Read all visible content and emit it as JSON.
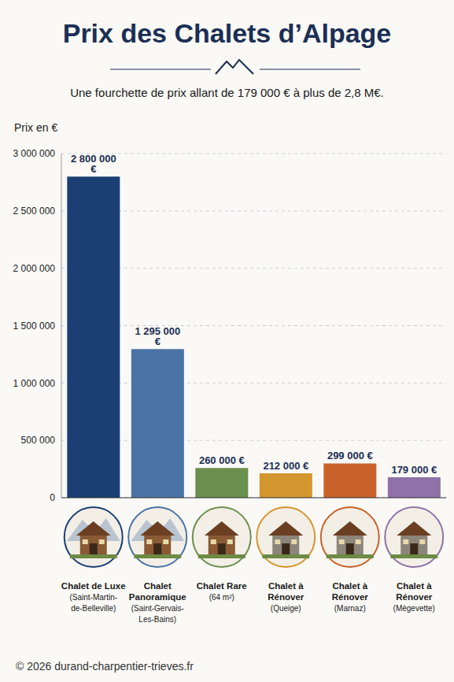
{
  "chart_data": {
    "type": "bar",
    "title": "Prix des Chalets d’Alpage",
    "subtitle": "Une fourchette de prix allant de 179 000 € à plus de 2,8 M€.",
    "y_label": "Prix en €",
    "footer": "© 2026 durand-charpentier-trieves.fr",
    "categories": [
      "Chalet de Luxe (Saint-Martin-de-Belleville)",
      "Chalet Panoramique (Saint-Gervais-Les-Bains)",
      "Chalet Rare (64 m²)",
      "Chalet à Rénover (Queige)",
      "Chalet à Rénover (Marnaz)",
      "Chalet à Rénover (Mègevette)"
    ],
    "values": [
      2800000,
      1295000,
      260000,
      212000,
      299000,
      179000
    ],
    "value_labels": [
      "2 800 000 €",
      "1 295 000 €",
      "260 000 €",
      "212 000 €",
      "299 000 €",
      "179 000 €"
    ],
    "colors": [
      "#1b3f73",
      "#4a73a6",
      "#6b8f4e",
      "#d4962e",
      "#c9622a",
      "#8e72a8"
    ],
    "ylim": [
      0,
      3000000
    ],
    "yticks": [
      {
        "value": 0,
        "label": "0"
      },
      {
        "value": 500000,
        "label": "500 000"
      },
      {
        "value": 1000000,
        "label": "1 000 000"
      },
      {
        "value": 1500000,
        "label": "1 500 000"
      },
      {
        "value": 2000000,
        "label": "2 000 000"
      },
      {
        "value": 2500000,
        "label": "2 500 000"
      },
      {
        "value": 3000000,
        "label": "3 000 000"
      }
    ],
    "grid": true,
    "data_labels": true
  }
}
